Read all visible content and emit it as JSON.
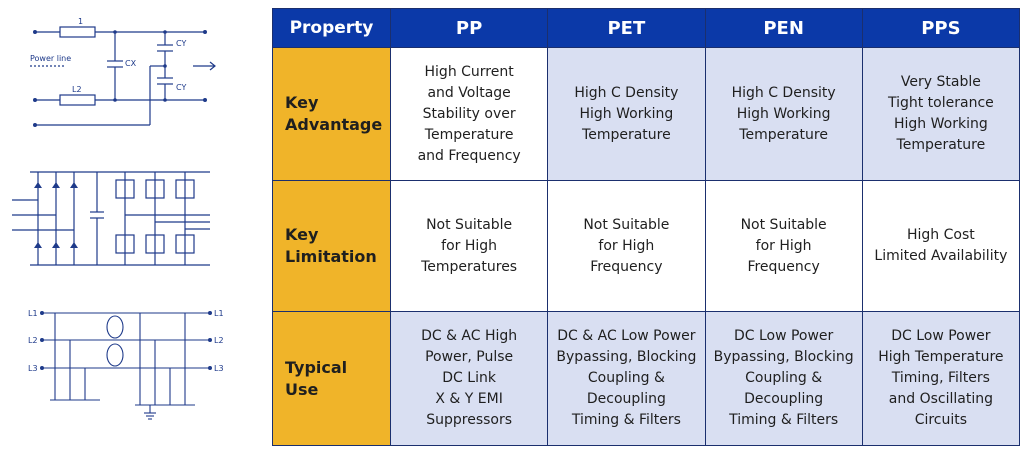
{
  "diagrams": {
    "filter": {
      "label_l1": "1",
      "label_power_line": "Power line",
      "label_l2": "L2",
      "label_cx": "CX",
      "label_cy_top": "CY",
      "label_cy_bottom": "CY"
    },
    "three_phase": {
      "labels_left": [
        "L1",
        "L2",
        "L3"
      ],
      "labels_right": [
        "L1",
        "L2",
        "L3"
      ]
    }
  },
  "table": {
    "headers": [
      "Property",
      "PP",
      "PET",
      "PEN",
      "PPS"
    ],
    "rows": [
      {
        "label": "Key\nAdvantage",
        "cells": [
          "High Current\nand Voltage\nStability over\nTemperature\nand Frequency",
          "High C Density\nHigh Working\nTemperature",
          "High C Density\nHigh Working\nTemperature",
          "Very Stable\nTight tolerance\nHigh Working\nTemperature"
        ]
      },
      {
        "label": "Key\nLimitation",
        "cells": [
          "Not Suitable\nfor High\nTemperatures",
          "Not Suitable\nfor High\nFrequency",
          "Not Suitable\nfor High\nFrequency",
          "High Cost\nLimited Availability"
        ]
      },
      {
        "label": "Typical\nUse",
        "cells": [
          "DC & AC High\nPower, Pulse\nDC Link\nX & Y EMI\nSuppressors",
          "DC & AC Low Power\nBypassing, Blocking\nCoupling &\nDecoupling\nTiming & Filters",
          "DC Low Power\nBypassing, Blocking\nCoupling &\nDecoupling\nTiming & Filters",
          "DC Low Power\nHigh Temperature\nTiming, Filters\nand Oscillating\nCircuits"
        ]
      }
    ]
  },
  "colors": {
    "header_blue": "#0b39a8",
    "label_gold": "#f0b429",
    "cell_shade": "#d9dff2",
    "line_blue": "#1e3a8a"
  }
}
